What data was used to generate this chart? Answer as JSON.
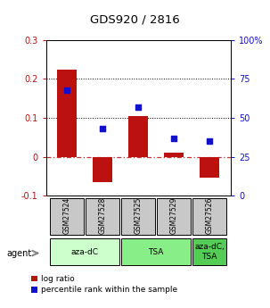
{
  "title": "GDS920 / 2816",
  "samples": [
    "GSM27524",
    "GSM27528",
    "GSM27525",
    "GSM27529",
    "GSM27526"
  ],
  "log_ratios": [
    0.225,
    -0.065,
    0.105,
    0.01,
    -0.055
  ],
  "percentile_ranks": [
    68,
    43,
    57,
    37,
    35
  ],
  "ylim_left": [
    -0.1,
    0.3
  ],
  "ylim_right": [
    0,
    100
  ],
  "yticks_left": [
    -0.1,
    0.0,
    0.1,
    0.2,
    0.3
  ],
  "yticks_right": [
    0,
    25,
    50,
    75,
    100
  ],
  "ytick_labels_left": [
    "-0.1",
    "0",
    "0.1",
    "0.2",
    "0.3"
  ],
  "ytick_labels_right": [
    "0",
    "25",
    "50",
    "75",
    "100%"
  ],
  "groups": [
    {
      "label": "aza-dC",
      "indices": [
        0,
        1
      ],
      "color": "#ccffcc"
    },
    {
      "label": "TSA",
      "indices": [
        2,
        3
      ],
      "color": "#88ee88"
    },
    {
      "label": "aza-dC,\nTSA",
      "indices": [
        4
      ],
      "color": "#55cc55"
    }
  ],
  "bar_color": "#bb1111",
  "dot_color": "#1111cc",
  "zero_line_color": "#cc3333",
  "dotted_line_color": "#000000",
  "sample_box_color": "#c8c8c8",
  "bar_width": 0.55,
  "agent_label": "agent",
  "legend_log_ratio": "log ratio",
  "legend_percentile": "percentile rank within the sample"
}
